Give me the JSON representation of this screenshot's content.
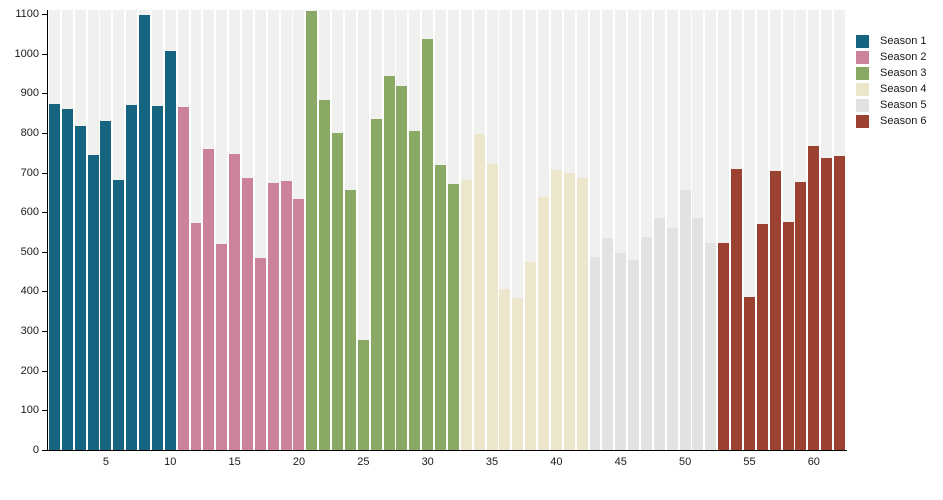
{
  "chart_data": {
    "type": "bar",
    "title": "",
    "xlabel": "",
    "ylabel": "",
    "ylim": [
      0,
      1110
    ],
    "yticks": [
      0,
      100,
      200,
      300,
      400,
      500,
      600,
      700,
      800,
      900,
      1000,
      1100
    ],
    "xticks": [
      5,
      10,
      15,
      20,
      25,
      30,
      35,
      40,
      45,
      50,
      55,
      60
    ],
    "x_unit": "episode-number",
    "total_bars": 62,
    "grid": "background-bands",
    "band_color": "#f0f0ee",
    "axis_color": "#000000",
    "text_color": "#1a1a1a",
    "legend_position": "right",
    "series": [
      {
        "name": "Season 1",
        "color": "#156581",
        "values": [
          872,
          861,
          817,
          745,
          830,
          682,
          870,
          1097,
          868,
          1007
        ]
      },
      {
        "name": "Season 2",
        "color": "#cc8298",
        "values": [
          866,
          572,
          760,
          519,
          747,
          686,
          485,
          673,
          678,
          634
        ]
      },
      {
        "name": "Season 3",
        "color": "#8aa965",
        "values": [
          1108,
          883,
          800,
          656,
          277,
          836,
          943,
          918,
          805,
          1036,
          719,
          670
        ]
      },
      {
        "name": "Season 4",
        "color": "#ebe6cc",
        "values": [
          681,
          796,
          721,
          406,
          383,
          475,
          638,
          706,
          700,
          687
        ]
      },
      {
        "name": "Season 5",
        "color": "#e2e2e0",
        "values": [
          488,
          534,
          498,
          479,
          538,
          586,
          559,
          656,
          586,
          521
        ]
      },
      {
        "name": "Season 6",
        "color": "#9a4130",
        "values": [
          521,
          709,
          385,
          570,
          705,
          574,
          675,
          767,
          736,
          742
        ]
      }
    ]
  }
}
